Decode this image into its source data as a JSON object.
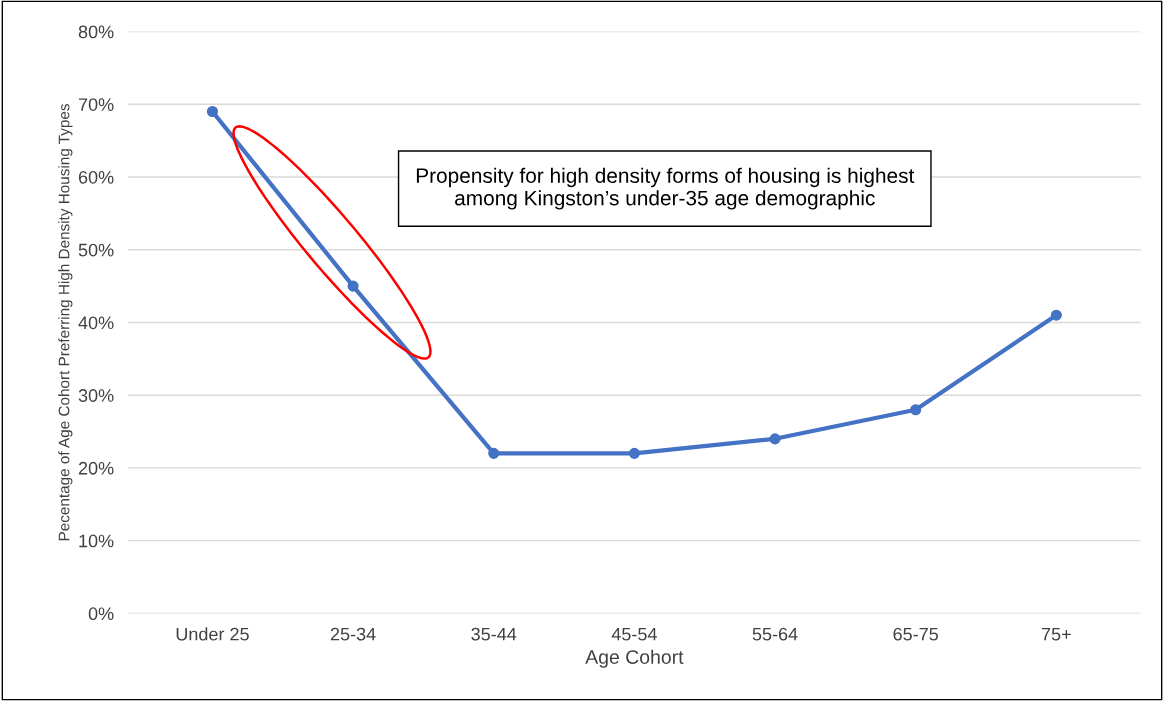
{
  "chart_data": {
    "type": "line",
    "categories": [
      "Under 25",
      "25-34",
      "35-44",
      "45-54",
      "55-64",
      "65-75",
      "75+"
    ],
    "series": [
      {
        "color": "#4472c4",
        "values": [
          69,
          45,
          22,
          22,
          24,
          28,
          41
        ]
      }
    ],
    "xlabel": "Age Cohort",
    "ylabel": "Pecentage of Age Cohort Preferring High Density Housing Types",
    "ylim": [
      0,
      80
    ],
    "yticks": [
      {
        "value": 0,
        "label": "0%"
      },
      {
        "value": 10,
        "label": "10%"
      },
      {
        "value": 20,
        "label": "20%"
      },
      {
        "value": 30,
        "label": "30%"
      },
      {
        "value": 40,
        "label": "40%"
      },
      {
        "value": 50,
        "label": "50%"
      },
      {
        "value": 60,
        "label": "60%"
      },
      {
        "value": 70,
        "label": "70%"
      },
      {
        "value": 80,
        "label": "80%"
      }
    ],
    "annotations": [
      "Propensity for high density forms of housing is highest among Kingston’s under-35 age demographic"
    ],
    "grid": "y",
    "marker": "circle",
    "line_style": "solid"
  }
}
